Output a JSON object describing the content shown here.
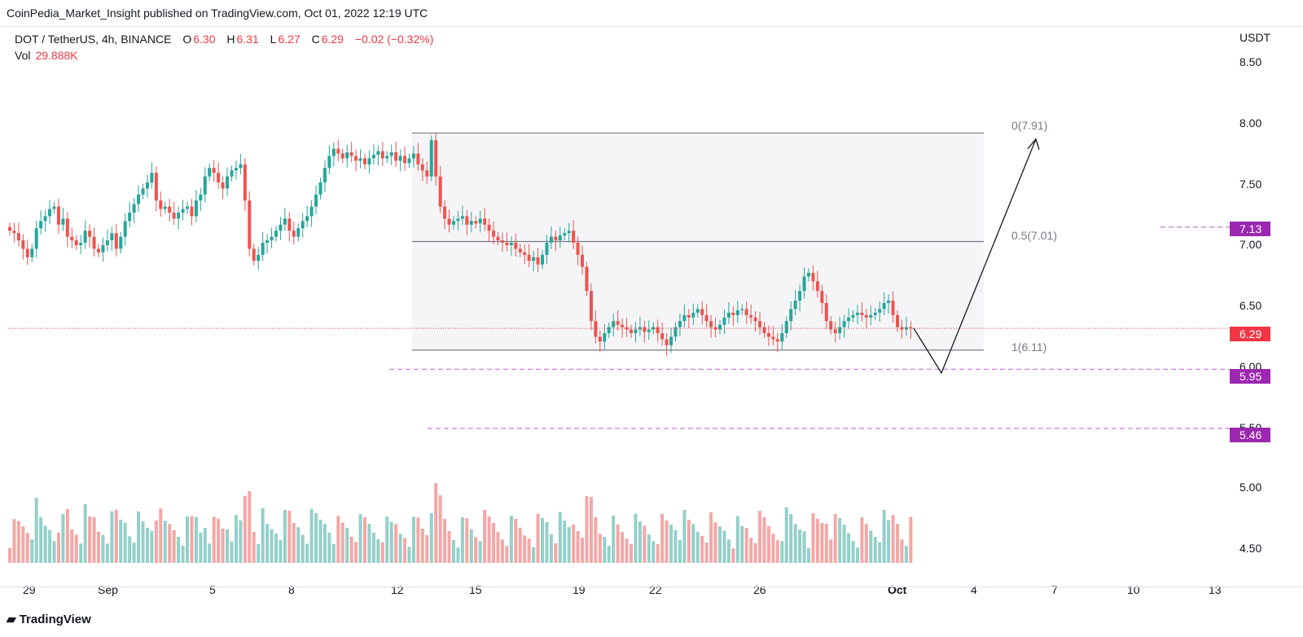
{
  "header": {
    "publisher": "CoinPedia_Market_Insight published on TradingView.com, Oct 01, 2022 12:19 UTC"
  },
  "symbol": {
    "name": "DOT / TetherUS, 4h, BINANCE",
    "o_label": "O",
    "o_value": "6.30",
    "h_label": "H",
    "h_value": "6.31",
    "l_label": "L",
    "l_value": "6.27",
    "c_label": "C",
    "c_value": "6.29",
    "change": "−0.02 (−0.32%)"
  },
  "volume": {
    "label": "Vol",
    "value": "29.888K"
  },
  "price_scale": {
    "currency": "USDT",
    "ticks": [
      "8.50",
      "8.00",
      "7.50",
      "7.00",
      "6.50",
      "6.00",
      "5.50",
      "5.00",
      "4.50"
    ],
    "current_price_badge": "6.29"
  },
  "fib": {
    "level_0": "0(7.91)",
    "level_05": "0.5(7.01)",
    "level_1": "1(6.11)"
  },
  "horizontal_levels": [
    "7.13",
    "5.95",
    "5.46"
  ],
  "time_axis": [
    "29",
    "Sep",
    "5",
    "8",
    "12",
    "15",
    "19",
    "22",
    "26",
    "Oct",
    "4",
    "7",
    "10",
    "13"
  ],
  "footer": {
    "brand": "TradingView"
  },
  "colors": {
    "up": "#26a69a",
    "down": "#ef5350",
    "level": "#9c27b0",
    "dashed": "#ce93d8",
    "fib": "#787b86",
    "current": "#f23645"
  },
  "chart_data": {
    "type": "candlestick",
    "title": "DOT / TetherUS, 4h, BINANCE",
    "ylabel": "USDT",
    "ylim": [
      4.3,
      8.6
    ],
    "close_series": [
      7.1,
      7.08,
      7.02,
      6.95,
      6.88,
      6.95,
      7.12,
      7.18,
      7.22,
      7.28,
      7.3,
      7.15,
      7.2,
      7.05,
      7.02,
      6.98,
      7.0,
      7.1,
      7.05,
      6.95,
      6.92,
      6.98,
      7.02,
      7.08,
      6.95,
      7.05,
      7.18,
      7.25,
      7.32,
      7.4,
      7.45,
      7.5,
      7.58,
      7.35,
      7.28,
      7.3,
      7.25,
      7.2,
      7.25,
      7.28,
      7.3,
      7.22,
      7.35,
      7.4,
      7.55,
      7.62,
      7.58,
      7.5,
      7.45,
      7.55,
      7.6,
      7.62,
      7.65,
      7.35,
      6.95,
      6.85,
      6.9,
      7.0,
      7.02,
      7.05,
      7.1,
      7.15,
      7.2,
      7.1,
      7.05,
      7.12,
      7.18,
      7.22,
      7.3,
      7.4,
      7.5,
      7.62,
      7.72,
      7.78,
      7.74,
      7.7,
      7.75,
      7.72,
      7.68,
      7.7,
      7.65,
      7.7,
      7.73,
      7.76,
      7.7,
      7.72,
      7.75,
      7.68,
      7.72,
      7.66,
      7.7,
      7.74,
      7.65,
      7.6,
      7.55,
      7.85,
      7.55,
      7.3,
      7.2,
      7.15,
      7.18,
      7.2,
      7.22,
      7.15,
      7.18,
      7.16,
      7.2,
      7.15,
      7.1,
      7.05,
      7.02,
      7.0,
      6.98,
      7.0,
      6.95,
      6.92,
      6.9,
      6.85,
      6.88,
      6.82,
      6.9,
      7.0,
      7.05,
      7.02,
      7.06,
      7.08,
      7.1,
      7.0,
      6.9,
      6.8,
      6.6,
      6.35,
      6.22,
      6.18,
      6.25,
      6.3,
      6.35,
      6.32,
      6.3,
      6.28,
      6.25,
      6.28,
      6.3,
      6.26,
      6.28,
      6.3,
      6.25,
      6.2,
      6.15,
      6.22,
      6.3,
      6.35,
      6.4,
      6.38,
      6.42,
      6.45,
      6.4,
      6.35,
      6.3,
      6.28,
      6.32,
      6.38,
      6.42,
      6.4,
      6.44,
      6.45,
      6.4,
      6.38,
      6.35,
      6.3,
      6.25,
      6.22,
      6.2,
      6.18,
      6.25,
      6.35,
      6.45,
      6.52,
      6.6,
      6.72,
      6.75,
      6.68,
      6.6,
      6.5,
      6.35,
      6.28,
      6.25,
      6.3,
      6.35,
      6.38,
      6.4,
      6.42,
      6.4,
      6.38,
      6.4,
      6.42,
      6.45,
      6.5,
      6.52,
      6.4,
      6.3,
      6.28,
      6.3,
      6.29
    ],
    "fib_levels": [
      {
        "label": "0",
        "value": 7.91
      },
      {
        "label": "0.5",
        "value": 7.01
      },
      {
        "label": "1",
        "value": 6.11
      }
    ],
    "horizontal_levels": [
      7.13,
      5.95,
      5.46
    ],
    "current_price": 6.29
  }
}
